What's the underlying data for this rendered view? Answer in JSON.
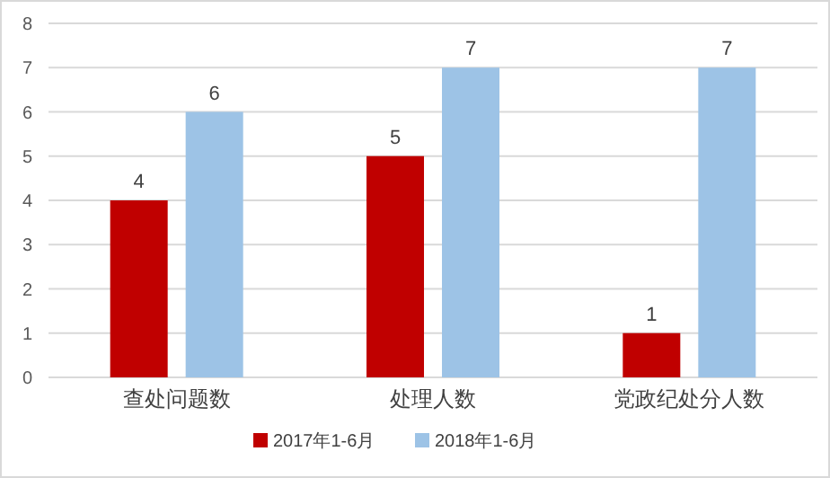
{
  "chart_data": {
    "type": "bar",
    "categories": [
      "查处问题数",
      "处理人数",
      "党政纪处分人数"
    ],
    "series": [
      {
        "name": "2017年1-6月",
        "color": "#c00000",
        "values": [
          4,
          5,
          1
        ]
      },
      {
        "name": "2018年1-6月",
        "color": "#9dc3e6",
        "values": [
          6,
          7,
          7
        ]
      }
    ],
    "ylim": [
      0,
      8
    ],
    "yticks": [
      0,
      1,
      2,
      3,
      4,
      5,
      6,
      7,
      8
    ],
    "grid": "y",
    "legend": "bottom",
    "data_labels": true
  }
}
